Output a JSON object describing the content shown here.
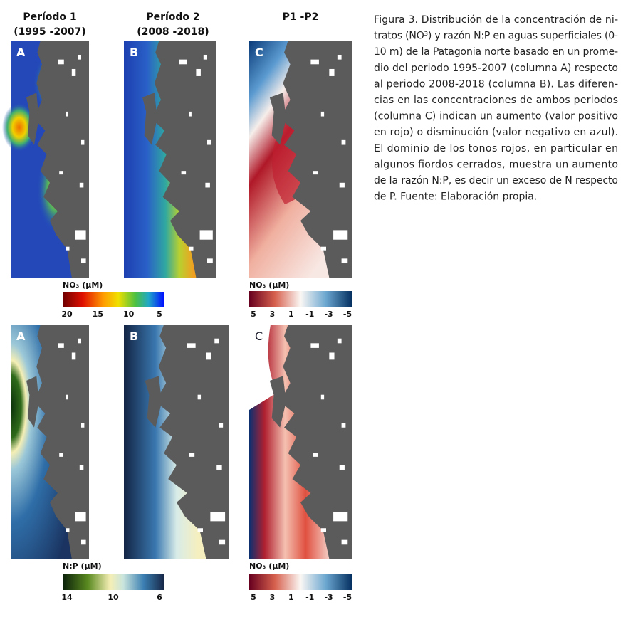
{
  "columns": [
    {
      "title": "Período 1",
      "subtitle": "(1995 -2007)"
    },
    {
      "title": "Período 2",
      "subtitle": "(2008 -2018)"
    },
    {
      "title": "P1 -P2"
    }
  ],
  "panels": [
    {
      "label": "A"
    },
    {
      "label": "B"
    },
    {
      "label": "C"
    },
    {
      "label": "A"
    },
    {
      "label": "B"
    },
    {
      "label": "C"
    }
  ],
  "colorbars": [
    {
      "title": "NO₃ (µM)",
      "ticks": [
        "20",
        "15",
        "10",
        "5"
      ]
    },
    {
      "title": "NO₃ (µM)",
      "ticks": [
        "5",
        "3",
        "1",
        "-1",
        "-3",
        "-5"
      ]
    },
    {
      "title": "N:P (µM)",
      "ticks": [
        "14",
        "10",
        "6"
      ]
    },
    {
      "title": "NO₃ (µM)",
      "ticks": [
        "5",
        "3",
        "1",
        "-1",
        "-3",
        "-5"
      ]
    }
  ],
  "caption": [
    "Figura 3. Distribución de la concentración de ni-",
    "tratos (NO³) y razón N:P en aguas superficiales (0-",
    "10 m) de la Patagonia norte basado en un prome-",
    "dio del periodo 1995-2007 (columna A) respecto",
    "al periodo 2008-2018 (columna B). Las diferen-",
    "cias en las concentraciones de ambos periodos",
    "(columna C) indican un aumento (valor positivo",
    "en rojo) o disminución (valor negativo en azul).",
    "El dominio de los tonos rojos, en particular en",
    "algunos fiordos cerrados, muestra un aumento",
    "de la razón N:P, es decir un exceso de N respecto",
    "de P.  Fuente: Elaboración propia."
  ]
}
